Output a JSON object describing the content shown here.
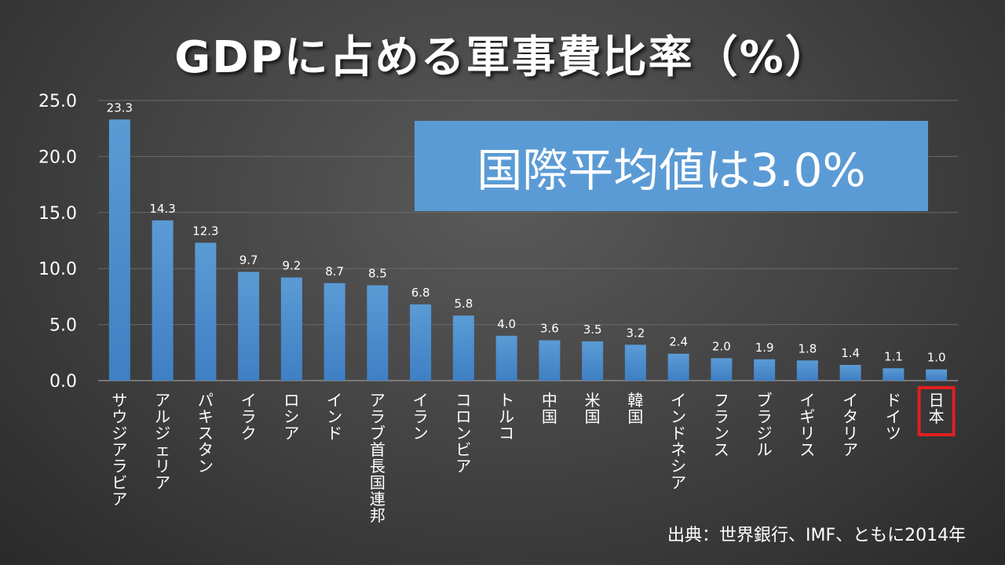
{
  "title": "GDPに占める軍事費比率（%）",
  "callout": "国際平均値は3.0%",
  "source": "出典：世界銀行、IMF、ともに2014年",
  "colors": {
    "bar_top": "#5b9bd5",
    "bar_bottom": "#3f7fc4",
    "highlight_box": "#e02020",
    "callout_bg": "#5b9bd5",
    "grid": "#6a6a6a"
  },
  "chart_data": {
    "type": "bar",
    "title": "GDPに占める軍事費比率（%）",
    "categories": [
      "サウジアラビア",
      "アルジェリア",
      "パキスタン",
      "イラク",
      "ロシア",
      "インド",
      "アラブ首長国連邦",
      "イラン",
      "コロンビア",
      "トルコ",
      "中国",
      "米国",
      "韓国",
      "インドネシア",
      "フランス",
      "ブラジル",
      "イギリス",
      "イタリア",
      "ドイツ",
      "日本"
    ],
    "values": [
      23.3,
      14.3,
      12.3,
      9.7,
      9.2,
      8.7,
      8.5,
      6.8,
      5.8,
      4.0,
      3.6,
      3.5,
      3.2,
      2.4,
      2.0,
      1.9,
      1.8,
      1.4,
      1.1,
      1.0
    ],
    "data_labels": [
      "23.3",
      "14.3",
      "12.3",
      "9.7",
      "9.2",
      "8.7",
      "8.5",
      "6.8",
      "5.8",
      "4.0",
      "3.6",
      "3.5",
      "3.2",
      "2.4",
      "2.0",
      "1.9",
      "1.8",
      "1.4",
      "1.1",
      "1.0"
    ],
    "yticks": [
      "0.0",
      "5.0",
      "10.0",
      "15.0",
      "20.0",
      "25.0"
    ],
    "ylim": [
      0,
      25
    ],
    "grid": true,
    "highlight": "日本"
  }
}
